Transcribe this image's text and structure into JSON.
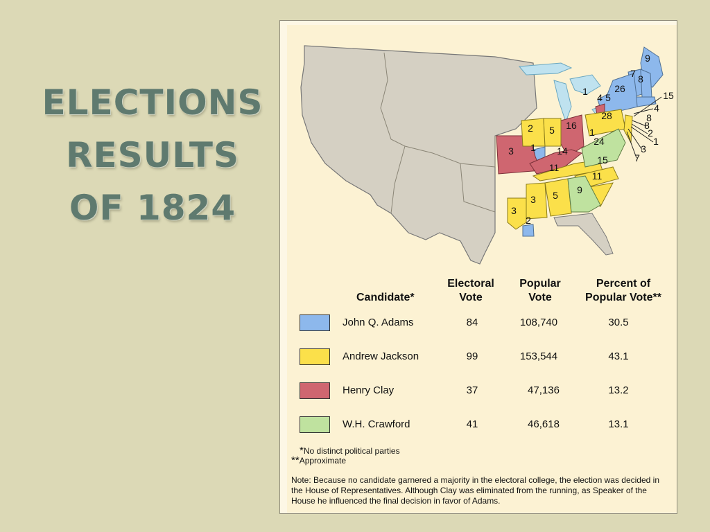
{
  "title_lines": [
    "ELECTIONS",
    "RESULTS",
    "OF 1824"
  ],
  "colors": {
    "adams": "#8db8ec",
    "jackson": "#fbe04a",
    "clay": "#cf6670",
    "crawford": "#bfe29f",
    "territory": "#d5d0c3",
    "water": "#bfe2ef"
  },
  "map": {
    "state_labels": [
      {
        "text": "9",
        "candidate": "adams"
      },
      {
        "text": "7",
        "candidate": "adams"
      },
      {
        "text": "8",
        "candidate": "adams"
      },
      {
        "text": "26",
        "candidate": "adams"
      },
      {
        "text": "15",
        "candidate": "adams"
      },
      {
        "text": "1",
        "candidate": "adams"
      },
      {
        "text": "4",
        "candidate": "clay"
      },
      {
        "text": "5",
        "candidate": "adams"
      },
      {
        "text": "4",
        "candidate": "adams"
      },
      {
        "text": "8",
        "candidate": "adams"
      },
      {
        "text": "28",
        "candidate": "jackson"
      },
      {
        "text": "8",
        "candidate": "jackson"
      },
      {
        "text": "2",
        "candidate": "jackson"
      },
      {
        "text": "1",
        "candidate": "adams"
      },
      {
        "text": "1",
        "candidate": "jackson"
      },
      {
        "text": "3",
        "candidate": "adams"
      },
      {
        "text": "7",
        "candidate": "jackson"
      },
      {
        "text": "2",
        "candidate": "jackson"
      },
      {
        "text": "5",
        "candidate": "jackson"
      },
      {
        "text": "16",
        "candidate": "clay"
      },
      {
        "text": "3",
        "candidate": "clay"
      },
      {
        "text": "1",
        "candidate": "adams"
      },
      {
        "text": "14",
        "candidate": "clay"
      },
      {
        "text": "24",
        "candidate": "crawford"
      },
      {
        "text": "11",
        "candidate": "jackson"
      },
      {
        "text": "15",
        "candidate": "jackson"
      },
      {
        "text": "11",
        "candidate": "jackson"
      },
      {
        "text": "3",
        "candidate": "jackson"
      },
      {
        "text": "5",
        "candidate": "jackson"
      },
      {
        "text": "9",
        "candidate": "crawford"
      },
      {
        "text": "3",
        "candidate": "jackson"
      },
      {
        "text": "2",
        "candidate": "adams"
      }
    ]
  },
  "table": {
    "headers": {
      "candidate": "Candidate",
      "candidate_mark": "*",
      "electoral": [
        "Electoral",
        "Vote"
      ],
      "popular": [
        "Popular",
        "Vote"
      ],
      "percent": [
        "Percent of",
        "Popular Vote"
      ],
      "percent_mark": "**"
    },
    "rows": [
      {
        "name": "John Q. Adams",
        "electoral": "84",
        "popular": "108,740",
        "percent": "30.5",
        "color_key": "adams"
      },
      {
        "name": "Andrew Jackson",
        "electoral": "99",
        "popular": "153,544",
        "percent": "43.1",
        "color_key": "jackson"
      },
      {
        "name": "Henry Clay",
        "electoral": "37",
        "popular": "47,136",
        "percent": "13.2",
        "color_key": "clay"
      },
      {
        "name": "W.H. Crawford",
        "electoral": "41",
        "popular": "46,618",
        "percent": "13.1",
        "color_key": "crawford"
      }
    ]
  },
  "footnotes": [
    {
      "mark": "*",
      "text": "No distinct political parties"
    },
    {
      "mark": "**",
      "text": "Approximate"
    }
  ],
  "note": "Note: Because no candidate garnered a majority in the electoral college, the election was decided in the House of Representatives. Although Clay was eliminated from the running, as Speaker of the House he influenced the final decision in favor of Adams."
}
